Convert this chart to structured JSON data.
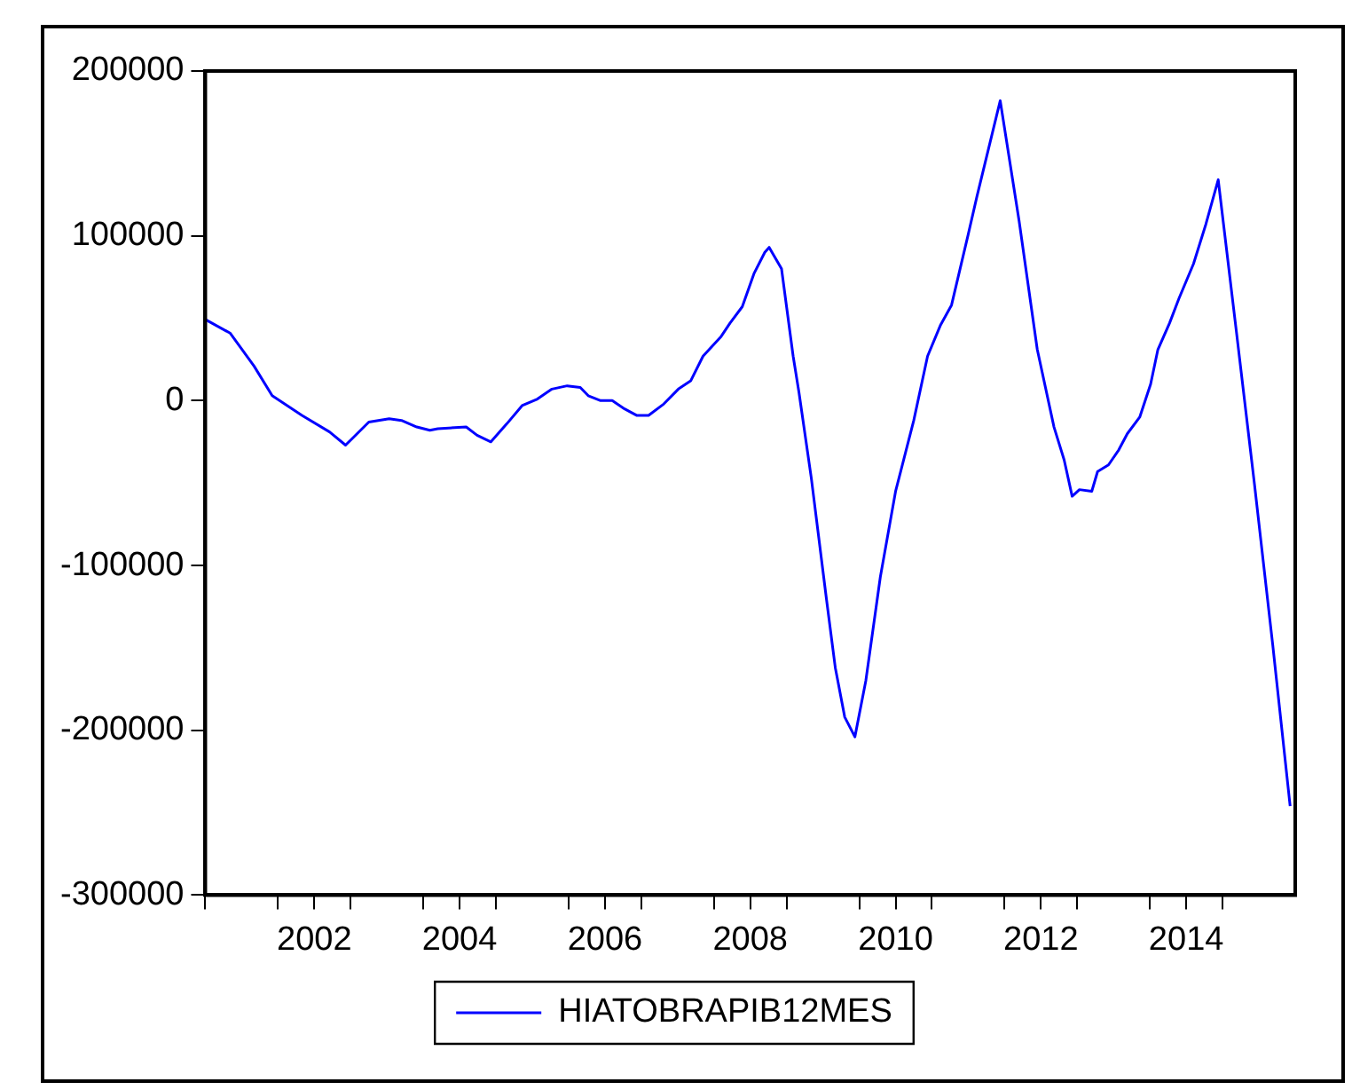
{
  "chart_data": {
    "type": "line",
    "series": [
      {
        "name": "HIATOBRAPIB12MES",
        "color": "#0000ff",
        "x": [
          2001.01,
          2001.34,
          2001.67,
          2001.92,
          2002.33,
          2002.71,
          2002.93,
          2003.25,
          2003.53,
          2003.7,
          2003.91,
          2004.09,
          2004.2,
          2004.59,
          2004.74,
          2004.93,
          2005.15,
          2005.36,
          2005.57,
          2005.77,
          2005.98,
          2006.16,
          2006.27,
          2006.44,
          2006.6,
          2006.77,
          2006.94,
          2007.1,
          2007.31,
          2007.51,
          2007.68,
          2007.85,
          2008.1,
          2008.22,
          2008.39,
          2008.55,
          2008.7,
          2008.76,
          2008.93,
          2009.09,
          2009.17,
          2009.34,
          2009.55,
          2009.67,
          2009.8,
          2009.94,
          2010.09,
          2010.29,
          2010.5,
          2010.75,
          2010.94,
          2011.12,
          2011.27,
          2011.5,
          2011.62,
          2011.94,
          2012.2,
          2012.45,
          2012.68,
          2012.82,
          2012.93,
          2013.03,
          2013.2,
          2013.28,
          2013.43,
          2013.57,
          2013.69,
          2013.86,
          2014.01,
          2014.11,
          2014.27,
          2014.4,
          2014.6,
          2014.77,
          2014.94,
          2015.19,
          2015.44,
          2015.69,
          2015.93
        ],
        "values": [
          49000,
          41000,
          21000,
          3000,
          -9000,
          -19000,
          -27000,
          -13000,
          -11000,
          -12000,
          -16000,
          -18000,
          -17000,
          -16000,
          -21000,
          -25000,
          -14000,
          -3000,
          1000,
          7000,
          9000,
          8000,
          3000,
          0,
          0,
          -5000,
          -9000,
          -9000,
          -2000,
          7000,
          12000,
          27000,
          39000,
          47000,
          57000,
          77000,
          90000,
          93000,
          80000,
          27000,
          5000,
          -47000,
          -121000,
          -162000,
          -192000,
          -204000,
          -170000,
          -107000,
          -55000,
          -12000,
          27000,
          46000,
          58000,
          101000,
          124000,
          182000,
          109000,
          31000,
          -16000,
          -36000,
          -58000,
          -54000,
          -55000,
          -43000,
          -39000,
          -30000,
          -20000,
          -10000,
          10000,
          31000,
          47000,
          62000,
          83000,
          107000,
          134000,
          42000,
          -51000,
          -148000,
          -246000
        ]
      }
    ],
    "xlim": [
      2001,
      2016
    ],
    "xticks": [
      {
        "value": 2001,
        "label": null
      },
      {
        "value": 2002,
        "label": null
      },
      {
        "value": 2002.5,
        "label": "2002"
      },
      {
        "value": 2003,
        "label": null
      },
      {
        "value": 2004,
        "label": null
      },
      {
        "value": 2004.5,
        "label": "2004"
      },
      {
        "value": 2005,
        "label": null
      },
      {
        "value": 2006,
        "label": null
      },
      {
        "value": 2006.5,
        "label": "2006"
      },
      {
        "value": 2007,
        "label": null
      },
      {
        "value": 2008,
        "label": null
      },
      {
        "value": 2008.5,
        "label": "2008"
      },
      {
        "value": 2009,
        "label": null
      },
      {
        "value": 2010,
        "label": null
      },
      {
        "value": 2010.5,
        "label": "2010"
      },
      {
        "value": 2011,
        "label": null
      },
      {
        "value": 2012,
        "label": null
      },
      {
        "value": 2012.5,
        "label": "2012"
      },
      {
        "value": 2013,
        "label": null
      },
      {
        "value": 2014,
        "label": null
      },
      {
        "value": 2014.5,
        "label": "2014"
      },
      {
        "value": 2015,
        "label": null
      }
    ],
    "ylim": [
      -300000,
      200000
    ],
    "yticks": [
      -300000,
      -200000,
      -100000,
      0,
      100000,
      200000
    ],
    "grid": false,
    "legend": "bottom",
    "marker": "none",
    "line_style": "solid"
  }
}
